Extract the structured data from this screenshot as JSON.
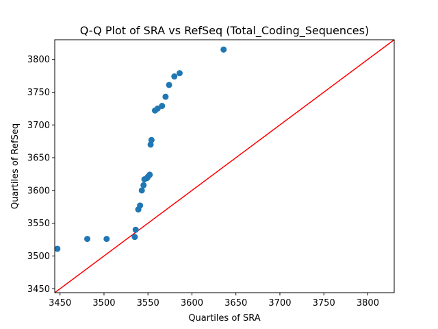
{
  "chart_data": {
    "type": "scatter",
    "title": "Q-Q Plot of SRA vs RefSeq (Total_Coding_Sequences)",
    "xlabel": "Quartiles of SRA",
    "ylabel": "Quartiles of RefSeq",
    "xlim": [
      3444,
      3830
    ],
    "ylim": [
      3444,
      3830
    ],
    "xticks": [
      3450,
      3500,
      3550,
      3600,
      3650,
      3700,
      3750,
      3800
    ],
    "yticks": [
      3450,
      3500,
      3550,
      3600,
      3650,
      3700,
      3750,
      3800
    ],
    "grid": false,
    "legend": "none",
    "series": [
      {
        "marker_color": "#1f77b4",
        "points": [
          {
            "x": 3447,
            "y": 3511
          },
          {
            "x": 3481,
            "y": 3526
          },
          {
            "x": 3503,
            "y": 3526
          },
          {
            "x": 3535,
            "y": 3529
          },
          {
            "x": 3536,
            "y": 3540
          },
          {
            "x": 3539,
            "y": 3571
          },
          {
            "x": 3541,
            "y": 3577
          },
          {
            "x": 3543,
            "y": 3600
          },
          {
            "x": 3545,
            "y": 3608
          },
          {
            "x": 3546,
            "y": 3617
          },
          {
            "x": 3549,
            "y": 3619
          },
          {
            "x": 3550,
            "y": 3621
          },
          {
            "x": 3552,
            "y": 3624
          },
          {
            "x": 3553,
            "y": 3670
          },
          {
            "x": 3554,
            "y": 3677
          },
          {
            "x": 3558,
            "y": 3722
          },
          {
            "x": 3561,
            "y": 3725
          },
          {
            "x": 3566,
            "y": 3729
          },
          {
            "x": 3570,
            "y": 3743
          },
          {
            "x": 3574,
            "y": 3761
          },
          {
            "x": 3580,
            "y": 3774
          },
          {
            "x": 3586,
            "y": 3779
          },
          {
            "x": 3636,
            "y": 3815
          }
        ]
      }
    ],
    "reference_line": {
      "color": "#ff0000",
      "from": [
        3444,
        3444
      ],
      "to": [
        3830,
        3830
      ]
    }
  }
}
